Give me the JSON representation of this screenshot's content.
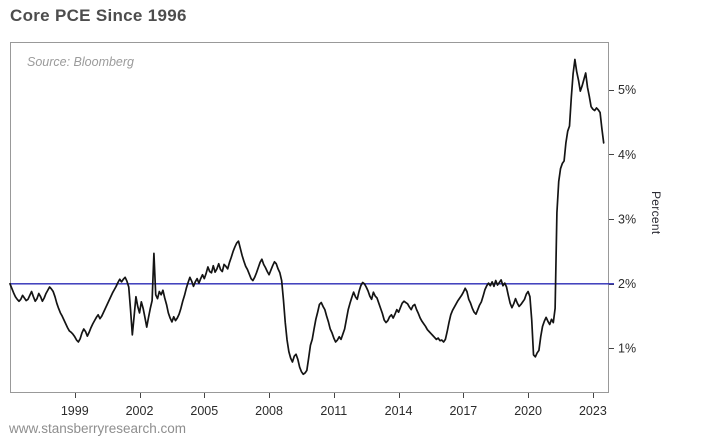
{
  "header": {
    "title": "Core PCE Since 1996"
  },
  "footer": {
    "url": "www.stansberryresearch.com"
  },
  "colors": {
    "title": "#4d4d4d",
    "source_note": "#9b9b9b",
    "frame": "#999999",
    "tick": "#444444",
    "axis_text": "#2b2b2b",
    "footer_url": "#8e8e8e",
    "reference_line": "#2a2ab5",
    "series_line": "#141414",
    "background": "#ffffff"
  },
  "chart_data": {
    "type": "line",
    "title": "Core PCE Since 1996",
    "source_note": "Source: Bloomberg",
    "ylabel": "Percent",
    "unit": "percent_yoy",
    "frequency": "monthly",
    "start_year": 1996,
    "start_month": 1,
    "xlim": [
      1996.0,
      2023.7
    ],
    "ylim": [
      0.326,
      5.74
    ],
    "x_ticks": [
      1999,
      2002,
      2005,
      2008,
      2011,
      2014,
      2017,
      2020,
      2023
    ],
    "y_ticks": [
      1,
      2,
      3,
      4,
      5
    ],
    "y_tick_suffix": "%",
    "grid": false,
    "legend": false,
    "reference_line": {
      "value": 2.0,
      "color": "#2a2ab5"
    },
    "series": [
      {
        "name": "Core PCE year-over-year percent change",
        "color": "#141414",
        "values": [
          2.0,
          1.93,
          1.86,
          1.8,
          1.76,
          1.73,
          1.76,
          1.82,
          1.78,
          1.74,
          1.76,
          1.82,
          1.88,
          1.8,
          1.73,
          1.77,
          1.85,
          1.8,
          1.73,
          1.78,
          1.85,
          1.9,
          1.95,
          1.92,
          1.88,
          1.8,
          1.7,
          1.62,
          1.55,
          1.5,
          1.44,
          1.38,
          1.32,
          1.27,
          1.25,
          1.22,
          1.18,
          1.13,
          1.1,
          1.15,
          1.24,
          1.3,
          1.26,
          1.19,
          1.25,
          1.32,
          1.38,
          1.43,
          1.48,
          1.52,
          1.46,
          1.5,
          1.56,
          1.62,
          1.68,
          1.74,
          1.8,
          1.86,
          1.91,
          1.96,
          2.02,
          2.07,
          2.03,
          2.07,
          2.1,
          2.04,
          1.95,
          1.6,
          1.21,
          1.5,
          1.8,
          1.65,
          1.55,
          1.72,
          1.62,
          1.48,
          1.33,
          1.48,
          1.62,
          1.74,
          2.47,
          1.83,
          1.77,
          1.88,
          1.83,
          1.9,
          1.78,
          1.68,
          1.55,
          1.47,
          1.41,
          1.49,
          1.43,
          1.47,
          1.53,
          1.62,
          1.73,
          1.82,
          1.93,
          2.02,
          2.1,
          2.04,
          1.96,
          2.03,
          2.08,
          2.01,
          2.08,
          2.14,
          2.08,
          2.16,
          2.26,
          2.19,
          2.17,
          2.28,
          2.18,
          2.23,
          2.31,
          2.22,
          2.19,
          2.3,
          2.27,
          2.23,
          2.33,
          2.41,
          2.5,
          2.57,
          2.63,
          2.66,
          2.55,
          2.44,
          2.35,
          2.27,
          2.22,
          2.15,
          2.08,
          2.05,
          2.1,
          2.17,
          2.25,
          2.33,
          2.38,
          2.3,
          2.25,
          2.19,
          2.14,
          2.21,
          2.28,
          2.34,
          2.31,
          2.23,
          2.17,
          2.05,
          1.75,
          1.4,
          1.13,
          0.95,
          0.85,
          0.79,
          0.88,
          0.91,
          0.83,
          0.71,
          0.64,
          0.6,
          0.62,
          0.66,
          0.85,
          1.05,
          1.14,
          1.3,
          1.45,
          1.56,
          1.68,
          1.71,
          1.65,
          1.6,
          1.5,
          1.41,
          1.3,
          1.24,
          1.16,
          1.1,
          1.13,
          1.18,
          1.14,
          1.22,
          1.3,
          1.45,
          1.6,
          1.7,
          1.79,
          1.87,
          1.8,
          1.76,
          1.88,
          1.97,
          2.02,
          2.0,
          1.95,
          1.89,
          1.81,
          1.76,
          1.87,
          1.81,
          1.78,
          1.7,
          1.62,
          1.54,
          1.44,
          1.4,
          1.43,
          1.49,
          1.52,
          1.47,
          1.53,
          1.6,
          1.56,
          1.63,
          1.7,
          1.73,
          1.71,
          1.69,
          1.64,
          1.6,
          1.66,
          1.68,
          1.6,
          1.54,
          1.47,
          1.42,
          1.38,
          1.34,
          1.29,
          1.26,
          1.23,
          1.2,
          1.17,
          1.14,
          1.16,
          1.12,
          1.13,
          1.1,
          1.14,
          1.26,
          1.4,
          1.52,
          1.59,
          1.64,
          1.69,
          1.74,
          1.78,
          1.82,
          1.87,
          1.93,
          1.88,
          1.76,
          1.7,
          1.62,
          1.56,
          1.53,
          1.6,
          1.67,
          1.72,
          1.81,
          1.91,
          1.97,
          2.01,
          1.97,
          2.03,
          1.96,
          2.05,
          1.98,
          2.02,
          2.06,
          1.97,
          2.01,
          1.95,
          1.82,
          1.7,
          1.63,
          1.69,
          1.77,
          1.7,
          1.65,
          1.68,
          1.72,
          1.76,
          1.84,
          1.88,
          1.8,
          1.44,
          0.9,
          0.87,
          0.93,
          0.97,
          1.18,
          1.34,
          1.42,
          1.48,
          1.42,
          1.37,
          1.45,
          1.4,
          1.62,
          3.1,
          3.58,
          3.78,
          3.86,
          3.9,
          4.18,
          4.36,
          4.44,
          4.88,
          5.25,
          5.47,
          5.28,
          5.15,
          4.98,
          5.06,
          5.16,
          5.26,
          5.04,
          4.9,
          4.74,
          4.7,
          4.68,
          4.72,
          4.69,
          4.65,
          4.4,
          4.18
        ]
      }
    ]
  }
}
